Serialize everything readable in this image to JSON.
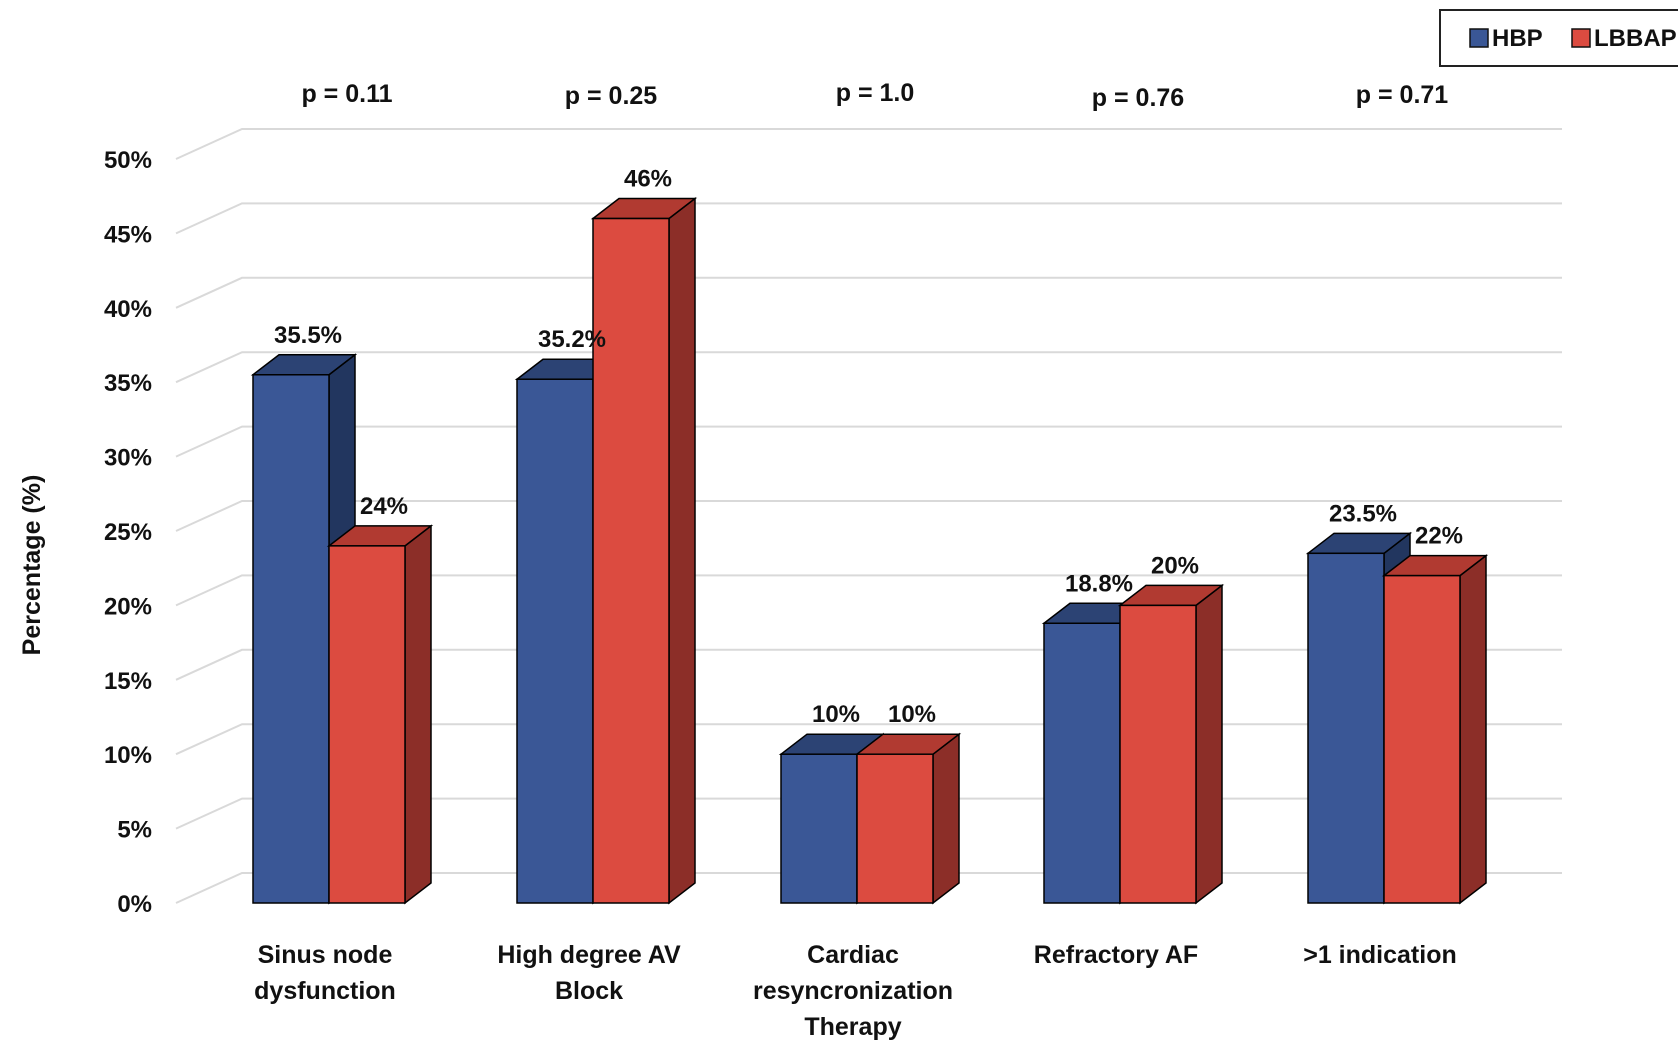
{
  "chart_data": {
    "type": "bar",
    "ylabel": "Percentage (%)",
    "ylim": [
      0,
      50
    ],
    "y_ticks": [
      "0%",
      "5%",
      "10%",
      "15%",
      "20%",
      "25%",
      "30%",
      "35%",
      "40%",
      "45%",
      "50%"
    ],
    "grid": true,
    "legend_position": "top-right",
    "categories": [
      [
        "Sinus node",
        "dysfunction"
      ],
      [
        "High degree AV",
        "Block"
      ],
      [
        "Cardiac",
        "resyncronization",
        "Therapy"
      ],
      [
        "Refractory AF"
      ],
      [
        ">1 indication"
      ]
    ],
    "series": [
      {
        "name": "HBP",
        "color": "#3A5796",
        "side_color": "#22365F",
        "top_color": "#2C4374",
        "values": [
          35.5,
          35.2,
          10,
          18.8,
          23.5
        ],
        "labels": [
          "35.5%",
          "35.2%",
          "10%",
          "18.8%",
          "23.5%"
        ]
      },
      {
        "name": "LBBAP",
        "color": "#DC4B40",
        "side_color": "#8C2E28",
        "top_color": "#B13A31",
        "values": [
          24,
          46,
          10,
          20,
          22
        ],
        "labels": [
          "24%",
          "46%",
          "10%",
          "20%",
          "22%"
        ]
      }
    ],
    "annotations": [
      "p = 0.11",
      "p = 0.25",
      "p = 1.0",
      "p = 0.76",
      "p = 0.71"
    ]
  }
}
